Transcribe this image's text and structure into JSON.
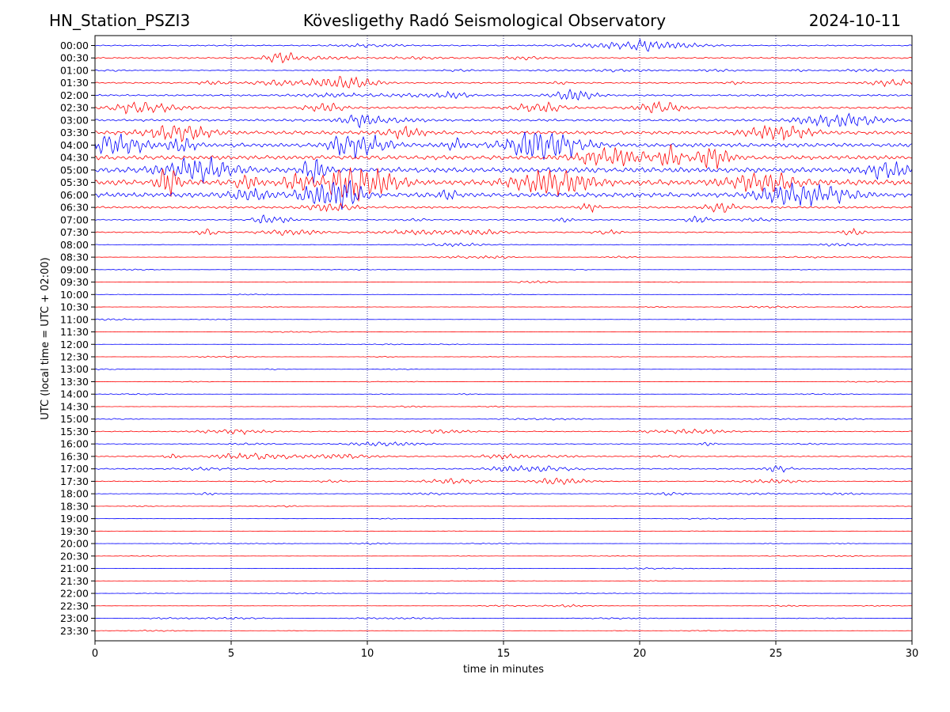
{
  "header": {
    "station": "HN_Station_PSZI3",
    "observatory": "Kövesligethy Radó Seismological Observatory",
    "date": "2024-10-11"
  },
  "chart_data": {
    "type": "line",
    "title": "Kövesligethy Radó Seismological Observatory",
    "xlabel": "time in minutes",
    "ylabel": "UTC (local time = UTC + 02:00)",
    "xlim": [
      0,
      30
    ],
    "xticks": [
      "0",
      "5",
      "10",
      "15",
      "20",
      "25",
      "30"
    ],
    "grid": "vertical dotted at each x tick",
    "colors": {
      "even_row": "#0000ff",
      "odd_row": "#ff0000",
      "grid": "#000080"
    },
    "rows": [
      {
        "label": "00:00",
        "amplitude": 0.3
      },
      {
        "label": "00:30",
        "amplitude": 0.35
      },
      {
        "label": "01:00",
        "amplitude": 0.2
      },
      {
        "label": "01:30",
        "amplitude": 0.35
      },
      {
        "label": "02:00",
        "amplitude": 0.45
      },
      {
        "label": "02:30",
        "amplitude": 0.55
      },
      {
        "label": "03:00",
        "amplitude": 0.6
      },
      {
        "label": "03:30",
        "amplitude": 0.9
      },
      {
        "label": "04:00",
        "amplitude": 1.0
      },
      {
        "label": "04:30",
        "amplitude": 1.1
      },
      {
        "label": "05:00",
        "amplitude": 1.3
      },
      {
        "label": "05:30",
        "amplitude": 1.4
      },
      {
        "label": "06:00",
        "amplitude": 1.2
      },
      {
        "label": "06:30",
        "amplitude": 0.55
      },
      {
        "label": "07:00",
        "amplitude": 0.3
      },
      {
        "label": "07:30",
        "amplitude": 0.3
      },
      {
        "label": "08:00",
        "amplitude": 0.15
      },
      {
        "label": "08:30",
        "amplitude": 0.1
      },
      {
        "label": "09:00",
        "amplitude": 0.06
      },
      {
        "label": "09:30",
        "amplitude": 0.06
      },
      {
        "label": "10:00",
        "amplitude": 0.06
      },
      {
        "label": "10:30",
        "amplitude": 0.08
      },
      {
        "label": "11:00",
        "amplitude": 0.06
      },
      {
        "label": "11:30",
        "amplitude": 0.05
      },
      {
        "label": "12:00",
        "amplitude": 0.05
      },
      {
        "label": "12:30",
        "amplitude": 0.05
      },
      {
        "label": "13:00",
        "amplitude": 0.05
      },
      {
        "label": "13:30",
        "amplitude": 0.05
      },
      {
        "label": "14:00",
        "amplitude": 0.05
      },
      {
        "label": "14:30",
        "amplitude": 0.08
      },
      {
        "label": "15:00",
        "amplitude": 0.08
      },
      {
        "label": "15:30",
        "amplitude": 0.25
      },
      {
        "label": "16:00",
        "amplitude": 0.18
      },
      {
        "label": "16:30",
        "amplitude": 0.25
      },
      {
        "label": "17:00",
        "amplitude": 0.3
      },
      {
        "label": "17:30",
        "amplitude": 0.22
      },
      {
        "label": "18:00",
        "amplitude": 0.12
      },
      {
        "label": "18:30",
        "amplitude": 0.06
      },
      {
        "label": "19:00",
        "amplitude": 0.05
      },
      {
        "label": "19:30",
        "amplitude": 0.05
      },
      {
        "label": "20:00",
        "amplitude": 0.05
      },
      {
        "label": "20:30",
        "amplitude": 0.05
      },
      {
        "label": "21:00",
        "amplitude": 0.05
      },
      {
        "label": "21:30",
        "amplitude": 0.05
      },
      {
        "label": "22:00",
        "amplitude": 0.05
      },
      {
        "label": "22:30",
        "amplitude": 0.06
      },
      {
        "label": "23:00",
        "amplitude": 0.08
      },
      {
        "label": "23:30",
        "amplitude": 0.05
      }
    ]
  }
}
